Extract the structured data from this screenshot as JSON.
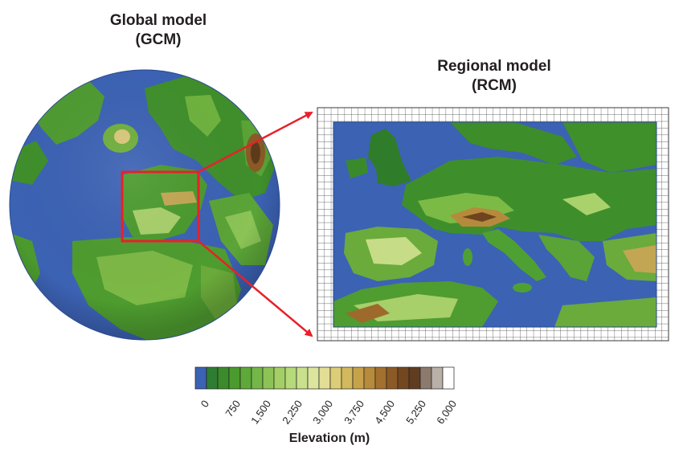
{
  "global_model": {
    "title_line1": "Global model",
    "title_line2": "(GCM)"
  },
  "regional_model": {
    "title_line1": "Regional model",
    "title_line2": "(RCM)"
  },
  "colorbar": {
    "label": "Elevation (m)",
    "ticks": [
      "0",
      "750",
      "1,500",
      "2,250",
      "3,000",
      "3,750",
      "4,500",
      "5,250",
      "6,000"
    ],
    "colors": [
      "#3c62b4",
      "#2e7d32",
      "#3b8a2b",
      "#4b9a2e",
      "#5da93a",
      "#74b748",
      "#8dc356",
      "#a3cf66",
      "#b6d97a",
      "#c9e08c",
      "#dbe59e",
      "#e3de96",
      "#dccd78",
      "#d2b95e",
      "#c6a24a",
      "#b78a3c",
      "#a3702f",
      "#8b5a26",
      "#73471f",
      "#5f3d21",
      "#8c7a6c",
      "#b9b0a7",
      "#ffffff"
    ]
  },
  "colors": {
    "ocean": "#3c62b4",
    "lowland": "#3e8f2c",
    "highland": "#c9b25a",
    "mountain": "#7a4a1e",
    "highlight_box": "#e8202a",
    "arrow": "#e8202a",
    "grid": "#3a3a3a"
  }
}
